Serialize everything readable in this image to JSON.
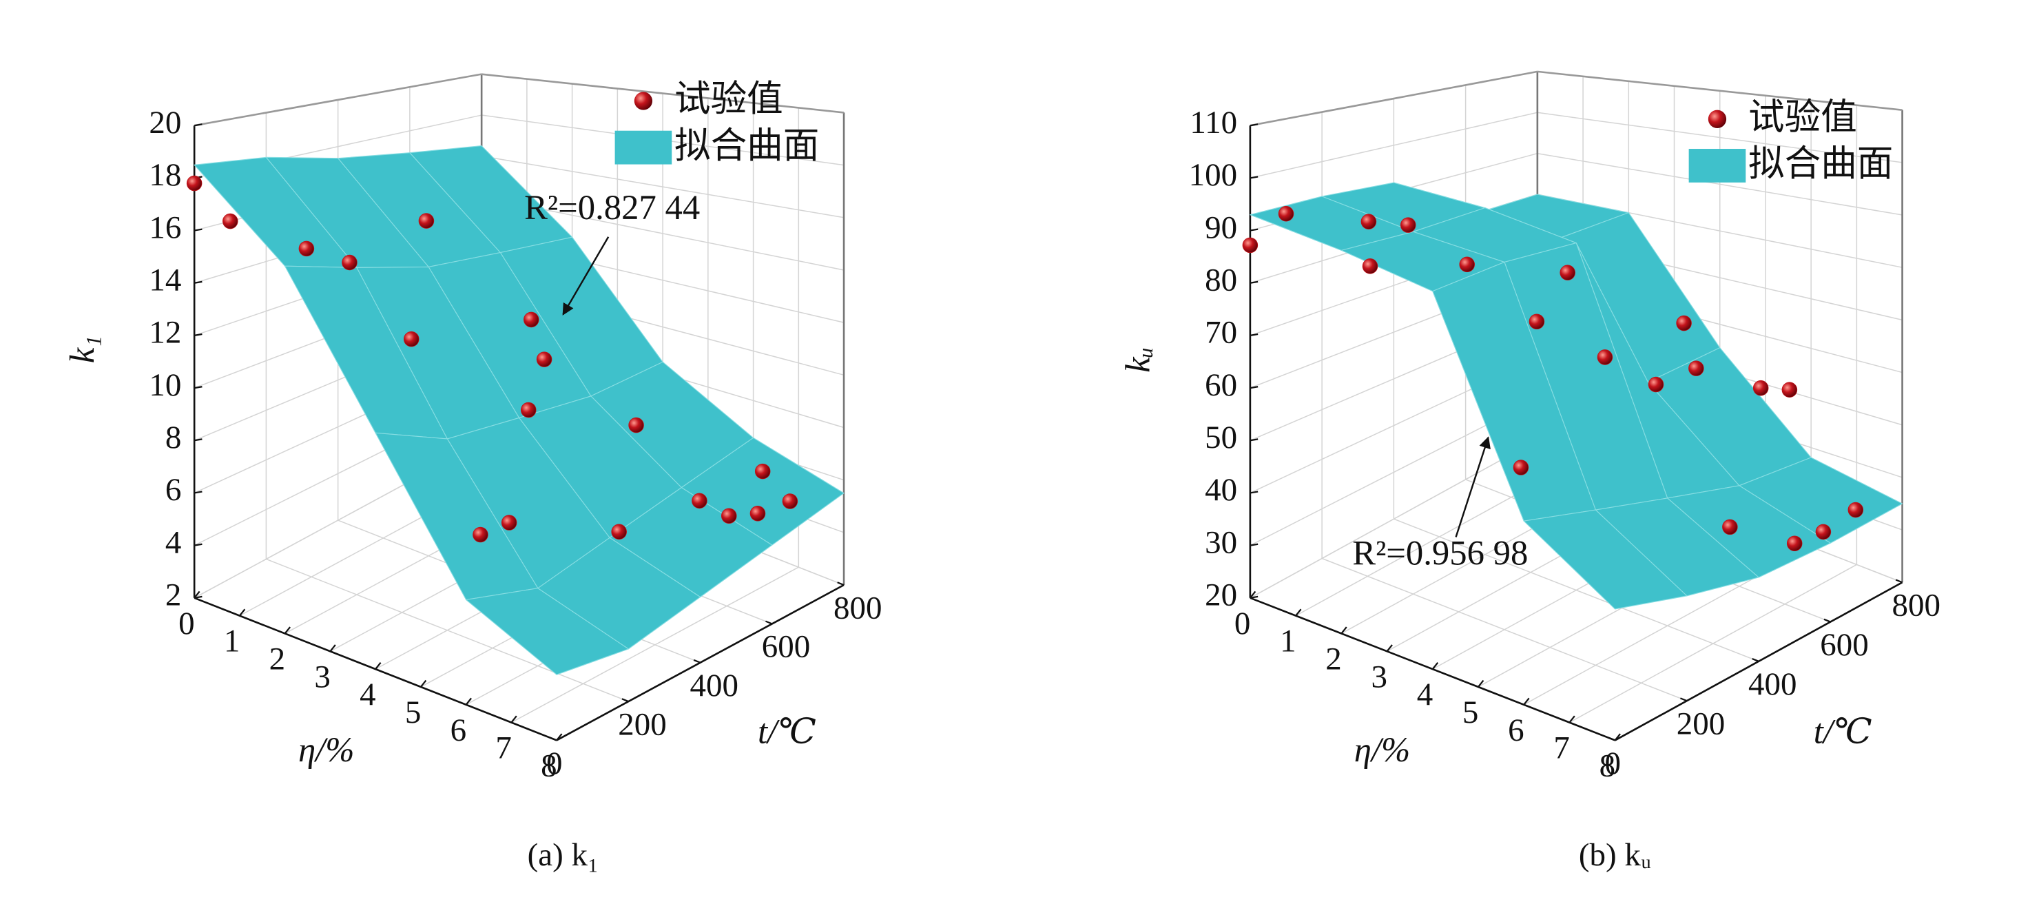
{
  "chart_data": [
    {
      "type": "surface3d",
      "caption": "(a) k₁",
      "xlabel": "η/%",
      "ylabel": "t/℃",
      "zlabel": "k₁",
      "annotation": "R²=0.827 44",
      "xlim": [
        0,
        8
      ],
      "xticks": [
        0,
        1,
        2,
        3,
        4,
        5,
        6,
        7,
        8
      ],
      "ylim": [
        0,
        800
      ],
      "yticks": [
        0,
        200,
        400,
        600,
        800
      ],
      "zlim": [
        2,
        20
      ],
      "zticks": [
        2,
        4,
        6,
        8,
        10,
        12,
        14,
        16,
        18,
        20
      ],
      "grid": true,
      "series": [
        {
          "name": "试验值",
          "type": "scatter",
          "color": "#c0161b",
          "x": [
            0,
            0,
            2,
            2,
            1,
            4,
            3,
            4,
            5,
            5,
            6,
            6,
            7,
            6,
            8,
            7,
            8,
            8
          ],
          "y": [
            0,
            100,
            60,
            180,
            520,
            100,
            560,
            470,
            300,
            600,
            40,
            120,
            300,
            650,
            480,
            700,
            650,
            560
          ],
          "values": [
            17.8,
            16.0,
            16.4,
            15.3,
            14.8,
            14.0,
            11.4,
            10.9,
            10.6,
            7.9,
            8.2,
            8.1,
            7.1,
            5.1,
            7.0,
            6.5,
            6.3,
            6.5
          ]
        },
        {
          "name": "拟合曲面",
          "type": "surface",
          "color": "#3fc1cb",
          "x": [
            0,
            2,
            4,
            6,
            8
          ],
          "y": [
            0,
            200,
            400,
            600,
            800
          ],
          "values": [
            [
              18.5,
              18.2,
              17.5,
              17,
              16.5
            ],
            [
              16,
              15,
              14,
              13.5,
              13
            ],
            [
              11,
              9.5,
              9,
              8.5,
              8.5
            ],
            [
              6,
              5,
              5.5,
              6,
              6.5
            ],
            [
              4.5,
              4,
              4.5,
              5,
              5.5
            ]
          ]
        }
      ]
    },
    {
      "type": "surface3d",
      "caption": "(b) kᵤ",
      "xlabel": "η/%",
      "ylabel": "t/℃",
      "zlabel": "kᵤ",
      "annotation": "R²=0.956 98",
      "xlim": [
        0,
        8
      ],
      "xticks": [
        0,
        1,
        2,
        3,
        4,
        5,
        6,
        7,
        8
      ],
      "ylim": [
        0,
        800
      ],
      "yticks": [
        0,
        200,
        400,
        600,
        800
      ],
      "zlim": [
        20,
        110
      ],
      "zticks": [
        20,
        30,
        40,
        50,
        60,
        70,
        80,
        90,
        100,
        110
      ],
      "grid": true,
      "series": [
        {
          "name": "试验值",
          "type": "scatter",
          "color": "#c0161b",
          "x": [
            0,
            0,
            0,
            0,
            2,
            2,
            2,
            4,
            4,
            4,
            6,
            6,
            6,
            6,
            2,
            8,
            8,
            8,
            8
          ],
          "y": [
            0,
            100,
            330,
            440,
            80,
            350,
            630,
            290,
            480,
            700,
            368,
            480,
            660,
            740,
            500,
            320,
            500,
            580,
            670
          ],
          "values": [
            87.2,
            91.4,
            85.2,
            82.0,
            88.1,
            81.6,
            71.8,
            77.6,
            64.3,
            63.8,
            68.4,
            67.6,
            57.2,
            53.9,
            34.3,
            48.6,
            38.7,
            37.9,
            38.7
          ]
        },
        {
          "name": "拟合曲面",
          "type": "surface",
          "color": "#3fc1cb",
          "x": [
            0,
            2,
            4,
            6,
            8
          ],
          "y": [
            0,
            200,
            400,
            600,
            800
          ],
          "values": [
            [
              93,
              93,
              92,
              80,
              80
            ],
            [
              93,
              92,
              92,
              80,
              80
            ],
            [
              92,
              92,
              90,
              55,
              55
            ],
            [
              55,
              50,
              45,
              40,
              38
            ],
            [
              45,
              40,
              36,
              35,
              35
            ]
          ]
        }
      ]
    }
  ]
}
